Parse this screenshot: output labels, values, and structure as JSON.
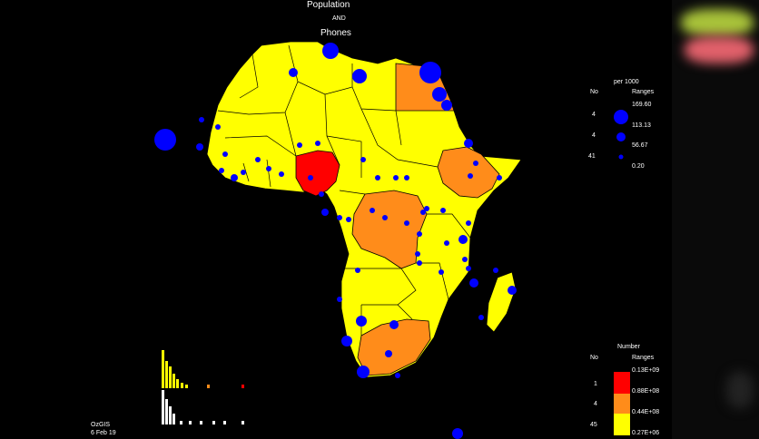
{
  "title": {
    "line1": "Population",
    "line2": "AND",
    "line3": "Phones"
  },
  "phones_legend": {
    "unit": "per 1000",
    "col_no": "No",
    "col_ranges": "Ranges",
    "ranges": [
      "169.60",
      "113.13",
      "56.67",
      "0.20"
    ],
    "counts": [
      "4",
      "4",
      "41"
    ]
  },
  "population_legend": {
    "heading": "Number",
    "col_no": "No",
    "col_ranges": "Ranges",
    "ranges": [
      "0.13E+09",
      "0.88E+08",
      "0.44E+08",
      "0.27E+06"
    ],
    "counts": [
      "1",
      "4",
      "45"
    ],
    "colors": [
      "#ff0000",
      "#ff8c1a",
      "#ffff00"
    ]
  },
  "credit": {
    "name": "OzGIS",
    "date": "6 Feb 19"
  },
  "colors": {
    "land_default": "#ffff00",
    "land_mid": "#ff8c1a",
    "land_high": "#ff0000",
    "phone_dot": "#0000ff",
    "border": "#000000",
    "background": "#000000"
  }
}
